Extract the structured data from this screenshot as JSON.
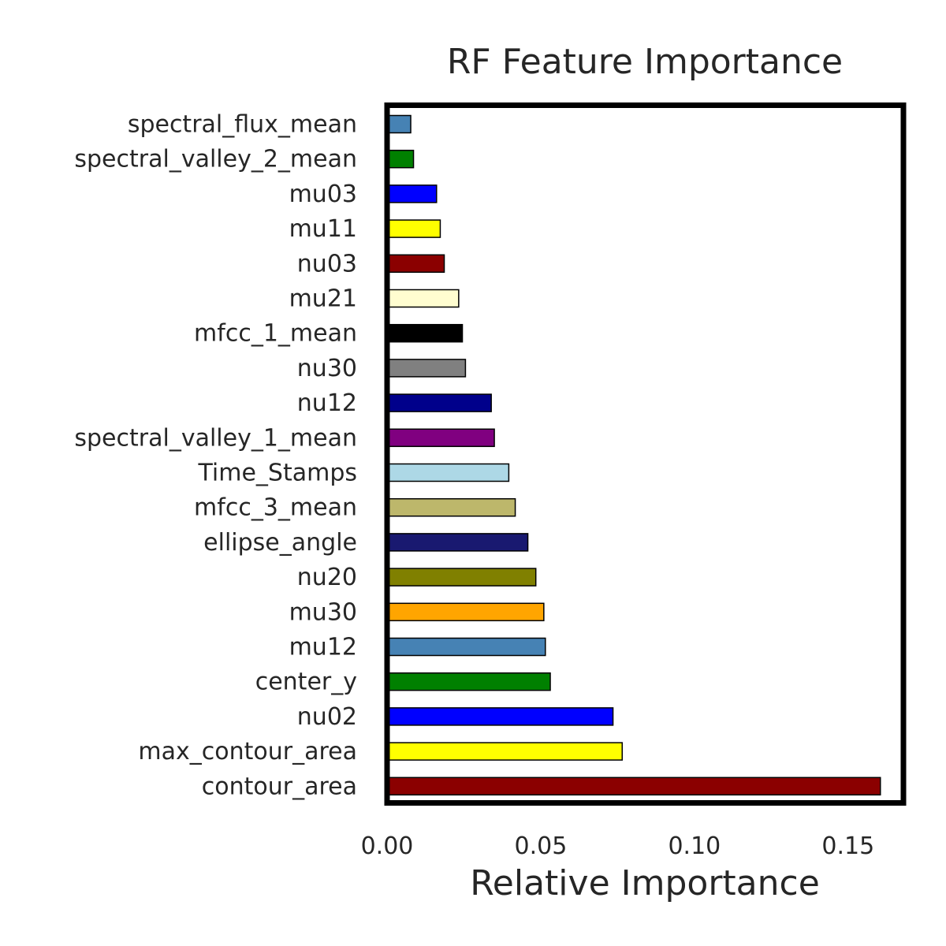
{
  "chart_data": {
    "type": "bar",
    "orientation": "horizontal",
    "title": "RF Feature Importance",
    "xlabel": "Relative Importance",
    "ylabel": "",
    "xlim": [
      0.0,
      0.168
    ],
    "xticks": [
      0.0,
      0.05,
      0.1,
      0.15
    ],
    "xtick_labels": [
      "0.00",
      "0.05",
      "0.10",
      "0.15"
    ],
    "grid": false,
    "legend": "none",
    "categories": [
      "spectral_flux_mean",
      "spectral_valley_2_mean",
      "mu03",
      "mu11",
      "nu03",
      "mu21",
      "mfcc_1_mean",
      "nu30",
      "nu12",
      "spectral_valley_1_mean",
      "Time_Stamps",
      "mfcc_3_mean",
      "ellipse_angle",
      "nu20",
      "mu30",
      "mu12",
      "center_y",
      "nu02",
      "max_contour_area",
      "contour_area"
    ],
    "values": [
      0.0077,
      0.0086,
      0.0161,
      0.0173,
      0.0186,
      0.0233,
      0.0245,
      0.0255,
      0.0339,
      0.0349,
      0.0396,
      0.0417,
      0.0458,
      0.0484,
      0.051,
      0.0515,
      0.0531,
      0.0735,
      0.0765,
      0.1605
    ],
    "colors": [
      "#4682b4",
      "#008000",
      "#0000ff",
      "#ffff00",
      "#8b0000",
      "#fffdd0",
      "#000000",
      "#808080",
      "#00008b",
      "#800080",
      "#add8e6",
      "#bdb76b",
      "#191970",
      "#808000",
      "#ffa500",
      "#4682b4",
      "#008000",
      "#0000ff",
      "#ffff00",
      "#8b0000"
    ]
  }
}
